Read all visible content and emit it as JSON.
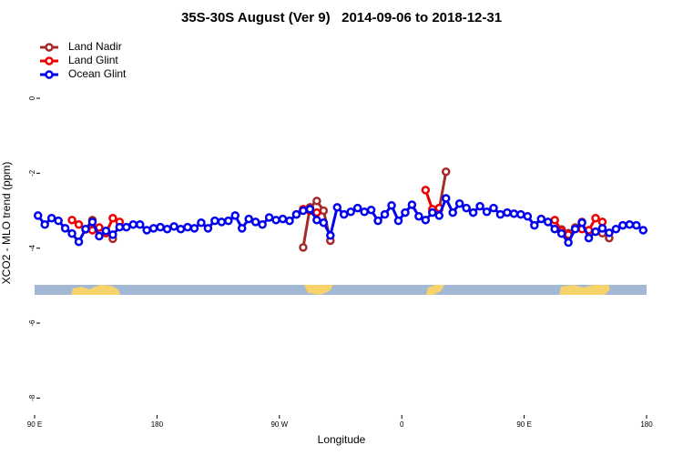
{
  "chart_data": {
    "type": "line",
    "title": "35S-30S August (Ver 9)   2014-09-06 to 2018-12-31",
    "x_label": "Longitude",
    "y_label": "XCO2 - MLO trend (ppm)",
    "xlim": [
      90,
      540
    ],
    "ylim": [
      -8.5,
      1.7
    ],
    "xticks": [
      {
        "value": 90,
        "label": "90 E"
      },
      180,
      {
        "value": 270,
        "label": "90 W"
      },
      {
        "value": 360,
        "label": "0"
      },
      {
        "value": 450,
        "label": "90 E"
      },
      {
        "value": 540,
        "label": "180"
      }
    ],
    "yticks": [
      0,
      -2,
      -4,
      -6,
      -8
    ],
    "legend": "topleft",
    "x": [
      92.5,
      97.5,
      102.5,
      107.5,
      112.5,
      117.5,
      122.5,
      127.5,
      132.5,
      137.5,
      142.5,
      147.5,
      152.5,
      157.5,
      162.5,
      167.5,
      172.5,
      177.5,
      182.5,
      187.5,
      192.5,
      197.5,
      202.5,
      207.5,
      212.5,
      217.5,
      222.5,
      227.5,
      232.5,
      237.5,
      242.5,
      247.5,
      252.5,
      257.5,
      262.5,
      267.5,
      272.5,
      277.5,
      282.5,
      287.5,
      292.5,
      297.5,
      302.5,
      307.5,
      312.5,
      317.5,
      322.5,
      327.5,
      332.5,
      337.5,
      342.5,
      347.5,
      352.5,
      357.5,
      362.5,
      367.5,
      372.5,
      377.5,
      382.5,
      387.5,
      392.5,
      397.5,
      402.5,
      407.5,
      412.5,
      417.5,
      422.5,
      427.5,
      432.5,
      437.5,
      442.5,
      447.5,
      452.5,
      457.5,
      462.5,
      467.5,
      472.5,
      477.5,
      482.5,
      487.5,
      492.5,
      497.5,
      502.5,
      507.5,
      512.5,
      517.5,
      522.5,
      527.5,
      532.5,
      537.5
    ],
    "series": [
      {
        "name": "Land Nadir",
        "color": "#a52a2a",
        "values": [
          null,
          null,
          null,
          null,
          null,
          null,
          null,
          -3.5,
          -3.25,
          null,
          -3.55,
          -3.75,
          null,
          null,
          null,
          null,
          null,
          null,
          null,
          null,
          null,
          null,
          null,
          null,
          null,
          null,
          null,
          null,
          null,
          null,
          null,
          null,
          null,
          null,
          null,
          null,
          null,
          null,
          null,
          -3.98,
          -2.91,
          -2.74,
          -3.0,
          -3.8,
          null,
          null,
          null,
          null,
          null,
          null,
          null,
          null,
          null,
          null,
          null,
          null,
          null,
          null,
          null,
          -2.96,
          -1.96,
          null,
          null,
          null,
          null,
          null,
          null,
          null,
          null,
          null,
          null,
          null,
          null,
          null,
          null,
          null,
          null,
          -3.5,
          -3.6,
          -3.45,
          -3.3,
          null,
          null,
          -3.6,
          -3.73,
          null,
          null,
          null,
          null,
          null
        ]
      },
      {
        "name": "Land Glint",
        "color": "#ee0000",
        "values": [
          null,
          null,
          null,
          null,
          null,
          -3.25,
          -3.37,
          null,
          -3.52,
          -3.45,
          -3.6,
          -3.2,
          -3.3,
          null,
          null,
          null,
          null,
          null,
          null,
          null,
          null,
          null,
          null,
          null,
          null,
          null,
          null,
          null,
          null,
          null,
          null,
          null,
          null,
          null,
          null,
          null,
          null,
          null,
          -3.1,
          -2.96,
          -3.0,
          -3.05,
          null,
          null,
          null,
          null,
          null,
          null,
          null,
          null,
          null,
          null,
          null,
          null,
          null,
          null,
          null,
          -2.45,
          -2.96,
          -2.93,
          null,
          null,
          null,
          null,
          null,
          null,
          null,
          null,
          null,
          null,
          null,
          null,
          null,
          null,
          null,
          null,
          -3.25,
          -3.54,
          -3.64,
          null,
          -3.49,
          -3.52,
          -3.2,
          -3.3,
          null,
          null,
          null,
          null,
          null,
          null
        ]
      },
      {
        "name": "Ocean Glint",
        "color": "#0000ee",
        "values": [
          -3.13,
          -3.37,
          -3.2,
          -3.27,
          -3.47,
          -3.61,
          -3.83,
          -3.49,
          -3.3,
          -3.68,
          -3.54,
          -3.64,
          -3.44,
          -3.44,
          -3.37,
          -3.37,
          -3.52,
          -3.47,
          -3.44,
          -3.49,
          -3.42,
          -3.49,
          -3.44,
          -3.47,
          -3.32,
          -3.47,
          -3.27,
          -3.3,
          -3.27,
          -3.13,
          -3.47,
          -3.22,
          -3.3,
          -3.37,
          -3.18,
          -3.25,
          -3.22,
          -3.27,
          -3.1,
          -3.0,
          -2.96,
          -3.25,
          -3.32,
          -3.66,
          -2.91,
          -3.1,
          -3.03,
          -2.93,
          -3.03,
          -2.98,
          -3.27,
          -3.1,
          -2.86,
          -3.27,
          -3.05,
          -2.84,
          -3.15,
          -3.25,
          -3.05,
          -3.13,
          -2.67,
          -3.05,
          -2.81,
          -2.93,
          -3.05,
          -2.88,
          -3.03,
          -2.93,
          -3.1,
          -3.05,
          -3.08,
          -3.1,
          -3.15,
          -3.39,
          -3.22,
          -3.3,
          -3.49,
          -3.61,
          -3.85,
          -3.49,
          -3.32,
          -3.73,
          -3.56,
          -3.47,
          -3.59,
          -3.49,
          -3.39,
          -3.37,
          -3.39,
          -3.52
        ]
      }
    ]
  }
}
